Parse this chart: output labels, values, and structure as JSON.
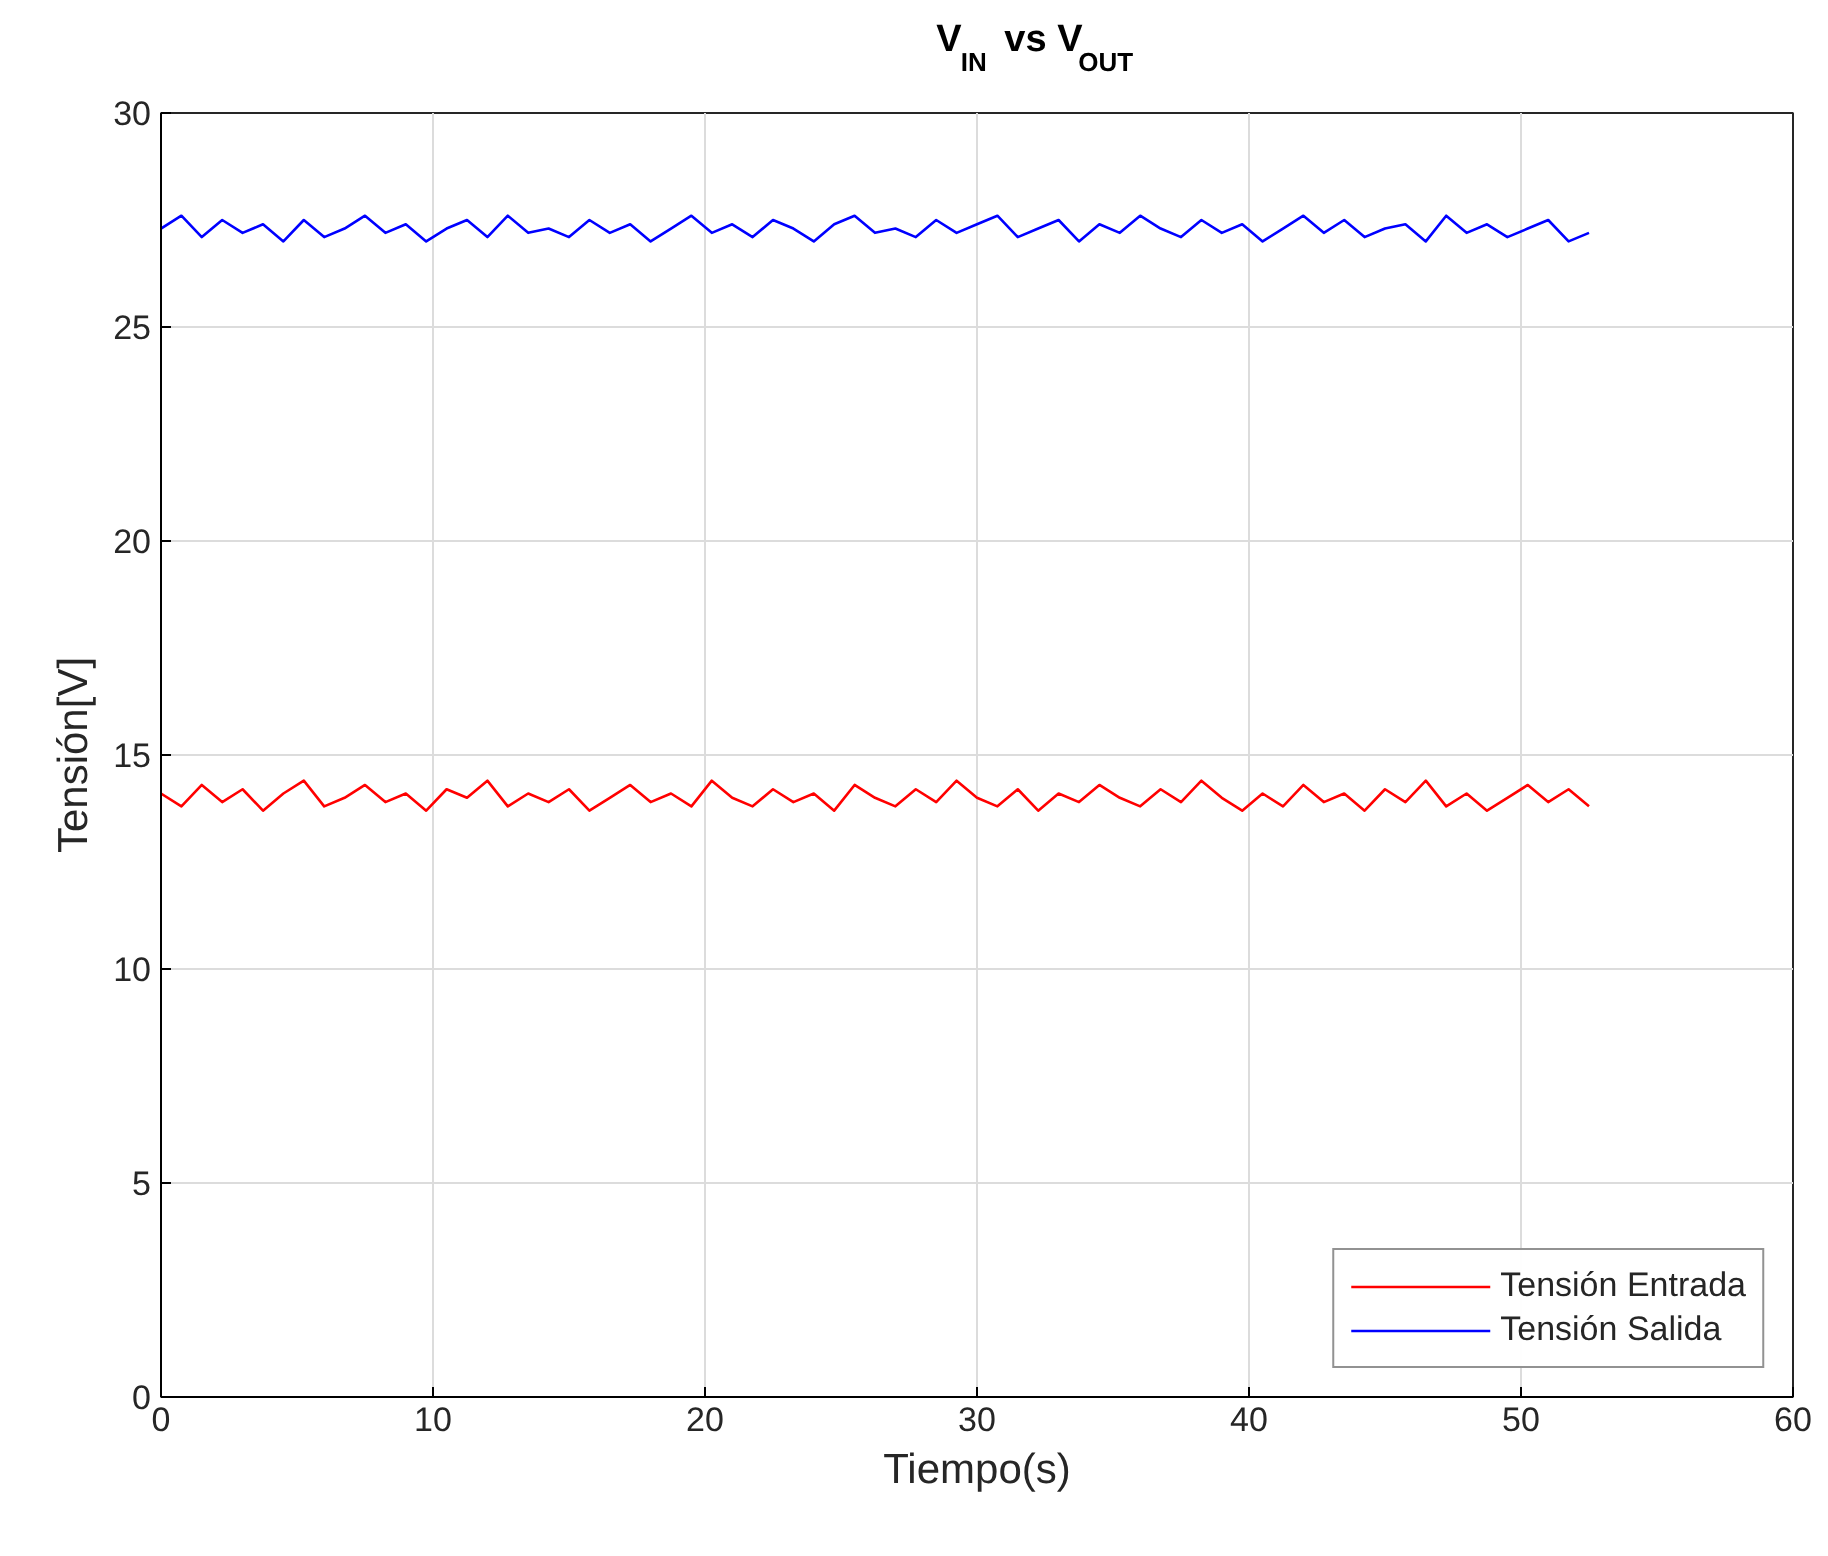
{
  "chart_data": {
    "type": "line",
    "title": "V$_{IN}$ vs V$_{OUT}$",
    "xlabel": "Tiempo(s)",
    "ylabel": "Tensión[V]",
    "x": [
      0,
      0.75,
      1.5,
      2.25,
      3,
      3.75,
      4.5,
      5.25,
      6,
      6.75,
      7.5,
      8.25,
      9,
      9.75,
      10.5,
      11.25,
      12,
      12.75,
      13.5,
      14.25,
      15,
      15.75,
      16.5,
      17.25,
      18,
      18.75,
      19.5,
      20.25,
      21,
      21.75,
      22.5,
      23.25,
      24,
      24.75,
      25.5,
      26.25,
      27,
      27.75,
      28.5,
      29.25,
      30,
      30.75,
      31.5,
      32.25,
      33,
      33.75,
      34.5,
      35.25,
      36,
      36.75,
      37.5,
      38.25,
      39,
      39.75,
      40.5,
      41.25,
      42,
      42.75,
      43.5,
      44.25,
      45,
      45.75,
      46.5,
      47.25,
      48,
      48.75,
      49.5,
      50.25,
      51,
      51.75,
      52.5
    ],
    "series": [
      {
        "name": "Tensión Entrada",
        "color": "#ff0000",
        "values": [
          14.1,
          13.8,
          14.3,
          13.9,
          14.2,
          13.7,
          14.1,
          14.4,
          13.8,
          14.0,
          14.3,
          13.9,
          14.1,
          13.7,
          14.2,
          14.0,
          14.4,
          13.8,
          14.1,
          13.9,
          14.2,
          13.7,
          14.0,
          14.3,
          13.9,
          14.1,
          13.8,
          14.4,
          14.0,
          13.8,
          14.2,
          13.9,
          14.1,
          13.7,
          14.3,
          14.0,
          13.8,
          14.2,
          13.9,
          14.4,
          14.0,
          13.8,
          14.2,
          13.7,
          14.1,
          13.9,
          14.3,
          14.0,
          13.8,
          14.2,
          13.9,
          14.4,
          14.0,
          13.7,
          14.1,
          13.8,
          14.3,
          13.9,
          14.1,
          13.7,
          14.2,
          13.9,
          14.4,
          13.8,
          14.1,
          13.7,
          14.0,
          14.3,
          13.9,
          14.2,
          13.8
        ]
      },
      {
        "name": "Tensión Salida",
        "color": "#0000ff",
        "values": [
          27.3,
          27.6,
          27.1,
          27.5,
          27.2,
          27.4,
          27.0,
          27.5,
          27.1,
          27.3,
          27.6,
          27.2,
          27.4,
          27.0,
          27.3,
          27.5,
          27.1,
          27.6,
          27.2,
          27.3,
          27.1,
          27.5,
          27.2,
          27.4,
          27.0,
          27.3,
          27.6,
          27.2,
          27.4,
          27.1,
          27.5,
          27.3,
          27.0,
          27.4,
          27.6,
          27.2,
          27.3,
          27.1,
          27.5,
          27.2,
          27.4,
          27.6,
          27.1,
          27.3,
          27.5,
          27.0,
          27.4,
          27.2,
          27.6,
          27.3,
          27.1,
          27.5,
          27.2,
          27.4,
          27.0,
          27.3,
          27.6,
          27.2,
          27.5,
          27.1,
          27.3,
          27.4,
          27.0,
          27.6,
          27.2,
          27.4,
          27.1,
          27.3,
          27.5,
          27.0,
          27.2
        ]
      }
    ],
    "xlim": [
      0,
      60
    ],
    "xticks": [
      0,
      10,
      20,
      30,
      40,
      50,
      60
    ],
    "ylim": [
      0,
      30
    ],
    "yticks": [
      0,
      5,
      10,
      15,
      20,
      25,
      30
    ],
    "grid": true,
    "legend": "bottom right",
    "marker": "none",
    "line_style": "solid"
  }
}
